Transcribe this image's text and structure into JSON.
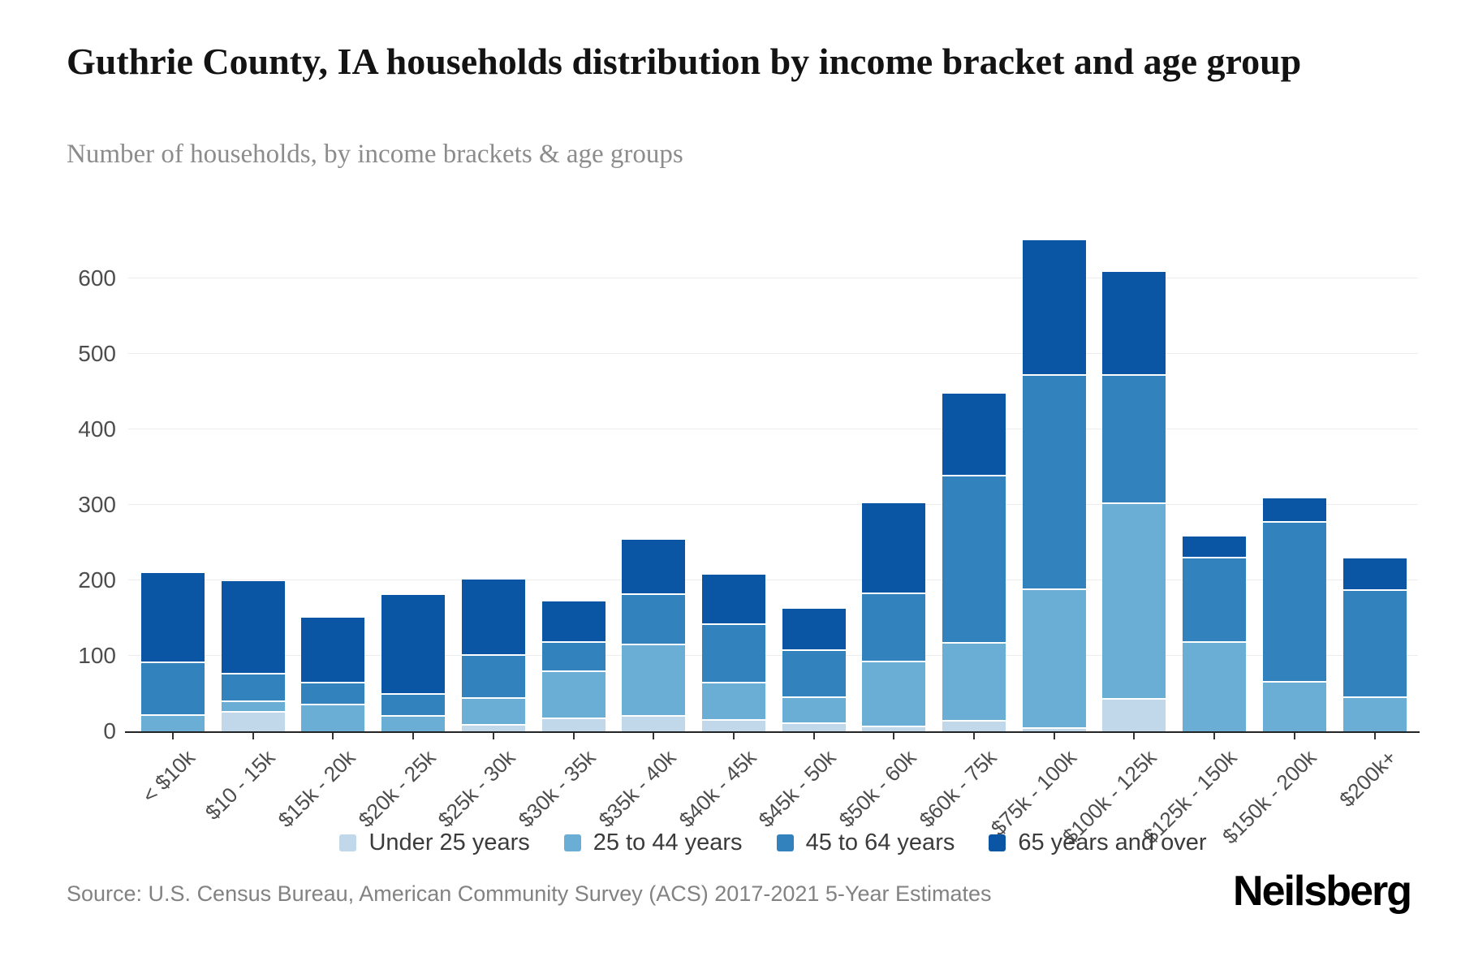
{
  "header": {
    "title": "Guthrie County, IA households distribution by income bracket and age group",
    "subtitle": "Number of households, by income brackets & age groups"
  },
  "chart_data": {
    "type": "bar",
    "stacked": true,
    "title": "Guthrie County, IA households distribution by income bracket and age group",
    "xlabel": "",
    "ylabel": "Number of households",
    "categories": [
      "< $10k",
      "$10 - 15k",
      "$15k - 20k",
      "$20k - 25k",
      "$25k - 30k",
      "$30k - 35k",
      "$35k - 40k",
      "$40k - 45k",
      "$45k - 50k",
      "$50k - 60k",
      "$60k - 75k",
      "$75k - 100k",
      "$100k - 125k",
      "$125k - 150k",
      "$150k - 200k",
      "$200k+"
    ],
    "series": [
      {
        "key": "under-25",
        "name": "Under 25 years",
        "color": "#c0d8ea",
        "values": [
          0,
          25,
          0,
          0,
          8,
          16,
          19,
          14,
          10,
          5,
          13,
          3,
          42,
          0,
          0,
          0
        ]
      },
      {
        "key": "25-44",
        "name": "25 to 44 years",
        "color": "#6aaed6",
        "values": [
          20,
          12,
          34,
          19,
          33,
          60,
          93,
          47,
          32,
          84,
          101,
          182,
          257,
          117,
          64,
          44
        ]
      },
      {
        "key": "45-64",
        "name": "45 to 64 years",
        "color": "#3182bd",
        "values": [
          68,
          34,
          27,
          27,
          55,
          37,
          64,
          76,
          60,
          88,
          219,
          282,
          168,
          110,
          210,
          140
        ]
      },
      {
        "key": "65-over",
        "name": "65 years and over",
        "color": "#0b56a4",
        "values": [
          117,
          121,
          85,
          130,
          99,
          53,
          71,
          64,
          54,
          119,
          108,
          177,
          135,
          27,
          30,
          41
        ]
      }
    ],
    "totals": [
      205,
      192,
      146,
      176,
      195,
      166,
      247,
      201,
      156,
      296,
      441,
      644,
      602,
      254,
      304,
      225
    ],
    "ylim": [
      0,
      700
    ],
    "yticks": [
      0,
      100,
      200,
      300,
      400,
      500,
      600
    ],
    "grid": true,
    "legend_position": "bottom"
  },
  "footer": {
    "source": "Source: U.S. Census Bureau, American Community Survey (ACS) 2017-2021 5-Year Estimates",
    "logo": "Neilsberg"
  }
}
